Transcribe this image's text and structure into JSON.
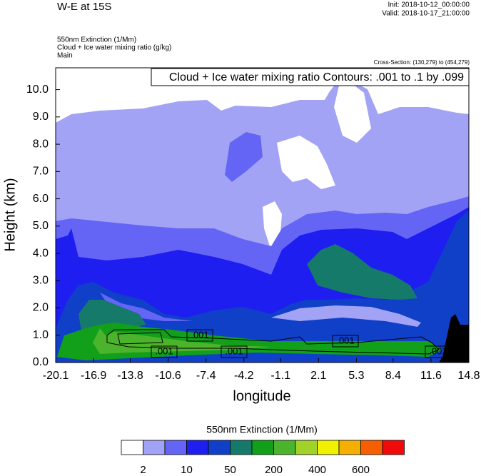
{
  "chart_data": {
    "type": "contour",
    "title": "W-E at 15S",
    "init": "Init: 2018-10-12_00:00:00",
    "valid": "Valid: 2018-10-17_21:00:00",
    "fields": [
      "550nm Extinction   (1/Mm)",
      "Cloud + Ice water mixing ratio   (g/kg)",
      "Main"
    ],
    "cross_section": "Cross-Section: (130,279) to (454,279)",
    "contour_note": "Cloud + Ice water mixing ratio Contours: .001 to .1 by .099",
    "contour_labels": [
      ".001",
      ".001",
      ".001",
      ".001",
      ".001"
    ],
    "x_label": "longitude",
    "y_label": "Height (km)",
    "xlim": [
      -20.1,
      14.8
    ],
    "xticks": [
      {
        "value": -20.1,
        "label": "-20.1"
      },
      {
        "value": -16.9,
        "label": "-16.9"
      },
      {
        "value": -13.8,
        "label": "-13.8"
      },
      {
        "value": -10.6,
        "label": "-10.6"
      },
      {
        "value": -7.4,
        "label": "-7.4"
      },
      {
        "value": -4.2,
        "label": "-4.2"
      },
      {
        "value": -1.1,
        "label": "-1.1"
      },
      2.1,
      5.3,
      8.4,
      11.6,
      14.8
    ],
    "ylim": [
      0,
      10.8
    ],
    "yticks": [
      {
        "value": 0,
        "label": "0.0"
      },
      {
        "value": 1,
        "label": "1.0"
      },
      {
        "value": 2,
        "label": "2.0"
      },
      {
        "value": 3,
        "label": "3.0"
      },
      {
        "value": 4,
        "label": "4.0"
      },
      {
        "value": 5,
        "label": "5.0"
      },
      {
        "value": 6,
        "label": "6.0"
      },
      {
        "value": 7,
        "label": "7.0"
      },
      {
        "value": 8,
        "label": "8.0"
      },
      {
        "value": 9,
        "label": "9.0"
      },
      {
        "value": 10,
        "label": "10.0"
      }
    ],
    "colorbar": {
      "title": "550nm Extinction  (1/Mm)",
      "colors": [
        "#ffffff",
        "#a3a3f5",
        "#6565f5",
        "#1e1ef0",
        "#1040c8",
        "#157a6a",
        "#12a01a",
        "#4cb42c",
        "#a0d228",
        "#f0f000",
        "#f5af00",
        "#f55f00",
        "#f00a0a"
      ],
      "levels": [
        2,
        10,
        50,
        200,
        400,
        600
      ]
    }
  }
}
